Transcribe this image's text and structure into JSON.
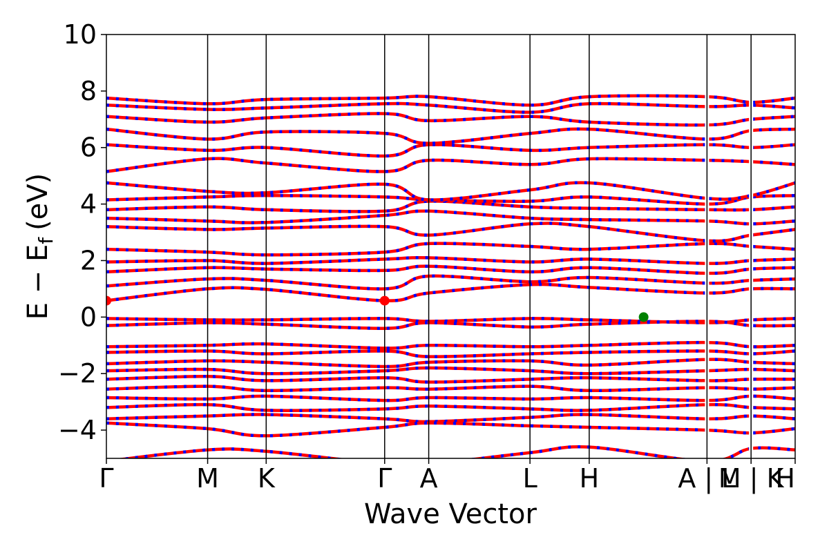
{
  "chart_data": {
    "type": "line",
    "title": "",
    "xlabel": "Wave Vector",
    "ylabel": "E − E",
    "ylabel_subscript": "f",
    "ylabel_unit": "(eV)",
    "ylim": [
      -5,
      10
    ],
    "yticks": [
      -4,
      -2,
      0,
      2,
      4,
      6,
      8,
      10
    ],
    "ytick_labels": [
      "−4",
      "−2",
      "0",
      "2",
      "4",
      "6",
      "8",
      "10"
    ],
    "kpath_ticks": [
      {
        "label": "Γ",
        "x": 0.0
      },
      {
        "label": "M",
        "x": 0.147
      },
      {
        "label": "K",
        "x": 0.232
      },
      {
        "label": "Γ",
        "x": 0.404
      },
      {
        "label": "A",
        "x": 0.468
      },
      {
        "label": "L",
        "x": 0.615
      },
      {
        "label": "H",
        "x": 0.701
      },
      {
        "label": "A | L",
        "x": 0.872
      },
      {
        "label": "M | K",
        "x": 0.936
      },
      {
        "label": "H",
        "x": 1.0
      }
    ],
    "discontinuities": [
      0.872,
      0.936
    ],
    "spin_colors": {
      "up": "#ff0000",
      "down": "#0000ff"
    },
    "cbm_marker": {
      "color": "#ff0000",
      "energy": 0.58,
      "x_positions": [
        0.0,
        0.404
      ]
    },
    "vbm_marker": {
      "color": "#008000",
      "energy": 0.0,
      "x": 0.78
    },
    "series": [
      {
        "x": [
          0.0,
          0.147,
          0.232,
          0.404,
          0.468,
          0.615,
          0.701,
          0.872,
          0.936,
          1.0
        ],
        "values": [
          0.58,
          1.0,
          0.98,
          0.58,
          0.85,
          1.15,
          1.05,
          0.85,
          1.0,
          1.0
        ]
      },
      {
        "x": [
          0.0,
          0.147,
          0.232,
          0.404,
          0.468,
          0.615,
          0.701,
          0.872,
          0.936,
          1.0
        ],
        "values": [
          1.1,
          1.35,
          1.3,
          1.0,
          1.45,
          1.25,
          1.4,
          1.2,
          1.3,
          1.35
        ]
      },
      {
        "x": [
          0.0,
          0.147,
          0.232,
          0.404,
          0.468,
          0.615,
          0.701,
          0.872,
          0.936,
          1.0
        ],
        "values": [
          1.6,
          1.75,
          1.7,
          1.65,
          1.8,
          1.6,
          1.75,
          1.55,
          1.7,
          1.75
        ]
      },
      {
        "x": [
          0.0,
          0.147,
          0.232,
          0.404,
          0.468,
          0.615,
          0.701,
          0.872,
          0.936,
          1.0
        ],
        "values": [
          1.95,
          2.0,
          1.9,
          2.05,
          2.1,
          1.95,
          2.05,
          1.9,
          2.0,
          2.05
        ]
      },
      {
        "x": [
          0.0,
          0.147,
          0.232,
          0.404,
          0.468,
          0.615,
          0.701,
          0.872,
          0.936,
          1.0
        ],
        "values": [
          2.4,
          2.3,
          2.2,
          2.3,
          2.6,
          2.5,
          2.4,
          2.6,
          2.5,
          2.4
        ]
      },
      {
        "x": [
          0.0,
          0.147,
          0.232,
          0.404,
          0.468,
          0.615,
          0.701,
          0.872,
          0.936,
          1.0
        ],
        "values": [
          3.2,
          3.1,
          3.15,
          3.2,
          2.9,
          3.3,
          3.2,
          2.7,
          2.9,
          3.1
        ]
      },
      {
        "x": [
          0.0,
          0.147,
          0.232,
          0.404,
          0.468,
          0.615,
          0.701,
          0.872,
          0.936,
          1.0
        ],
        "values": [
          3.5,
          3.4,
          3.35,
          3.6,
          3.75,
          3.5,
          3.45,
          3.4,
          3.3,
          3.4
        ]
      },
      {
        "x": [
          0.0,
          0.147,
          0.232,
          0.404,
          0.468,
          0.615,
          0.701,
          0.872,
          0.936,
          1.0
        ],
        "values": [
          3.8,
          3.9,
          3.8,
          3.75,
          4.1,
          3.9,
          3.85,
          3.8,
          3.8,
          3.9
        ]
      },
      {
        "x": [
          0.0,
          0.147,
          0.232,
          0.404,
          0.468,
          0.615,
          0.701,
          0.872,
          0.936,
          1.0
        ],
        "values": [
          4.15,
          4.25,
          4.3,
          4.25,
          4.15,
          4.1,
          4.25,
          4.0,
          4.25,
          4.3
        ]
      },
      {
        "x": [
          0.0,
          0.147,
          0.232,
          0.404,
          0.468,
          0.615,
          0.701,
          0.872,
          0.936,
          1.0
        ],
        "values": [
          4.75,
          4.45,
          4.4,
          4.7,
          4.15,
          4.5,
          4.75,
          4.2,
          4.3,
          4.75
        ]
      },
      {
        "x": [
          0.0,
          0.147,
          0.232,
          0.404,
          0.468,
          0.615,
          0.701,
          0.872,
          0.936,
          1.0
        ],
        "values": [
          5.15,
          5.6,
          5.45,
          5.15,
          5.55,
          5.4,
          5.6,
          5.55,
          5.5,
          5.4
        ]
      },
      {
        "x": [
          0.0,
          0.147,
          0.232,
          0.404,
          0.468,
          0.615,
          0.701,
          0.872,
          0.936,
          1.0
        ],
        "values": [
          6.1,
          5.9,
          6.0,
          5.7,
          6.1,
          5.9,
          6.0,
          6.1,
          6.0,
          6.1
        ]
      },
      {
        "x": [
          0.0,
          0.147,
          0.232,
          0.404,
          0.468,
          0.615,
          0.701,
          0.872,
          0.936,
          1.0
        ],
        "values": [
          6.65,
          6.3,
          6.55,
          6.5,
          6.15,
          6.5,
          6.65,
          6.3,
          6.6,
          6.65
        ]
      },
      {
        "x": [
          0.0,
          0.147,
          0.232,
          0.404,
          0.468,
          0.615,
          0.701,
          0.872,
          0.936,
          1.0
        ],
        "values": [
          7.1,
          6.9,
          7.05,
          7.2,
          6.95,
          7.1,
          6.9,
          6.8,
          7.0,
          7.1
        ]
      },
      {
        "x": [
          0.0,
          0.147,
          0.232,
          0.404,
          0.468,
          0.615,
          0.701,
          0.872,
          0.936,
          1.0
        ],
        "values": [
          7.5,
          7.35,
          7.4,
          7.55,
          7.5,
          7.25,
          7.55,
          7.45,
          7.5,
          7.4
        ]
      },
      {
        "x": [
          0.0,
          0.147,
          0.232,
          0.404,
          0.468,
          0.615,
          0.701,
          0.872,
          0.936,
          1.0
        ],
        "values": [
          7.75,
          7.55,
          7.7,
          7.75,
          7.8,
          7.5,
          7.8,
          7.8,
          7.6,
          7.75
        ]
      },
      {
        "x": [
          0.0,
          0.147,
          0.232,
          0.404,
          0.468,
          0.615,
          0.701,
          0.872,
          0.936,
          1.0
        ],
        "values": [
          -0.05,
          -0.1,
          -0.1,
          -0.05,
          -0.15,
          -0.05,
          -0.1,
          -0.2,
          -0.1,
          -0.05
        ]
      },
      {
        "x": [
          0.0,
          0.147,
          0.232,
          0.404,
          0.468,
          0.615,
          0.701,
          0.872,
          0.936,
          1.0
        ],
        "values": [
          -0.3,
          -0.2,
          -0.25,
          -0.4,
          -0.2,
          -0.35,
          -0.25,
          -0.15,
          -0.3,
          -0.3
        ]
      },
      {
        "x": [
          0.0,
          0.147,
          0.232,
          0.404,
          0.468,
          0.615,
          0.701,
          0.872,
          0.936,
          1.0
        ],
        "values": [
          -1.05,
          -1.0,
          -0.95,
          -1.1,
          -1.0,
          -1.05,
          -1.0,
          -0.9,
          -1.05,
          -1.0
        ]
      },
      {
        "x": [
          0.0,
          0.147,
          0.232,
          0.404,
          0.468,
          0.615,
          0.701,
          0.872,
          0.936,
          1.0
        ],
        "values": [
          -1.25,
          -1.2,
          -1.3,
          -1.2,
          -1.4,
          -1.3,
          -1.25,
          -1.2,
          -1.3,
          -1.2
        ]
      },
      {
        "x": [
          0.0,
          0.147,
          0.232,
          0.404,
          0.468,
          0.615,
          0.701,
          0.872,
          0.936,
          1.0
        ],
        "values": [
          -1.65,
          -1.55,
          -1.6,
          -1.75,
          -1.6,
          -1.55,
          -1.7,
          -1.5,
          -1.6,
          -1.65
        ]
      },
      {
        "x": [
          0.0,
          0.147,
          0.232,
          0.404,
          0.468,
          0.615,
          0.701,
          0.872,
          0.936,
          1.0
        ],
        "values": [
          -1.9,
          -1.85,
          -2.0,
          -1.9,
          -1.8,
          -1.9,
          -2.0,
          -1.9,
          -1.85,
          -1.9
        ]
      },
      {
        "x": [
          0.0,
          0.147,
          0.232,
          0.404,
          0.468,
          0.615,
          0.701,
          0.872,
          0.936,
          1.0
        ],
        "values": [
          -2.2,
          -2.1,
          -2.25,
          -2.15,
          -2.3,
          -2.2,
          -2.15,
          -2.25,
          -2.2,
          -2.2
        ]
      },
      {
        "x": [
          0.0,
          0.147,
          0.232,
          0.404,
          0.468,
          0.615,
          0.701,
          0.872,
          0.936,
          1.0
        ],
        "values": [
          -2.55,
          -2.45,
          -2.6,
          -2.5,
          -2.55,
          -2.45,
          -2.6,
          -2.5,
          -2.55,
          -2.5
        ]
      },
      {
        "x": [
          0.0,
          0.147,
          0.232,
          0.404,
          0.468,
          0.615,
          0.701,
          0.872,
          0.936,
          1.0
        ],
        "values": [
          -2.85,
          -2.9,
          -2.8,
          -2.95,
          -2.85,
          -2.9,
          -2.85,
          -2.95,
          -2.8,
          -2.9
        ]
      },
      {
        "x": [
          0.0,
          0.147,
          0.232,
          0.404,
          0.468,
          0.615,
          0.701,
          0.872,
          0.936,
          1.0
        ],
        "values": [
          -3.2,
          -3.1,
          -3.3,
          -3.25,
          -3.15,
          -3.25,
          -3.3,
          -3.1,
          -3.2,
          -3.25
        ]
      },
      {
        "x": [
          0.0,
          0.147,
          0.232,
          0.404,
          0.468,
          0.615,
          0.701,
          0.872,
          0.936,
          1.0
        ],
        "values": [
          -3.6,
          -3.5,
          -3.45,
          -3.6,
          -3.7,
          -3.55,
          -3.45,
          -3.6,
          -3.5,
          -3.6
        ]
      },
      {
        "x": [
          0.0,
          0.147,
          0.232,
          0.404,
          0.468,
          0.615,
          0.701,
          0.872,
          0.936,
          1.0
        ],
        "values": [
          -3.75,
          -3.95,
          -4.2,
          -3.9,
          -3.75,
          -3.85,
          -3.9,
          -4.0,
          -4.1,
          -3.95
        ]
      },
      {
        "x": [
          0.0,
          0.147,
          0.232,
          0.404,
          0.468,
          0.615,
          0.701,
          0.872,
          0.936,
          1.0
        ],
        "values": [
          -5.1,
          -4.7,
          -4.75,
          -5.2,
          -5.2,
          -4.8,
          -4.6,
          -5.1,
          -4.65,
          -4.7
        ]
      }
    ]
  }
}
